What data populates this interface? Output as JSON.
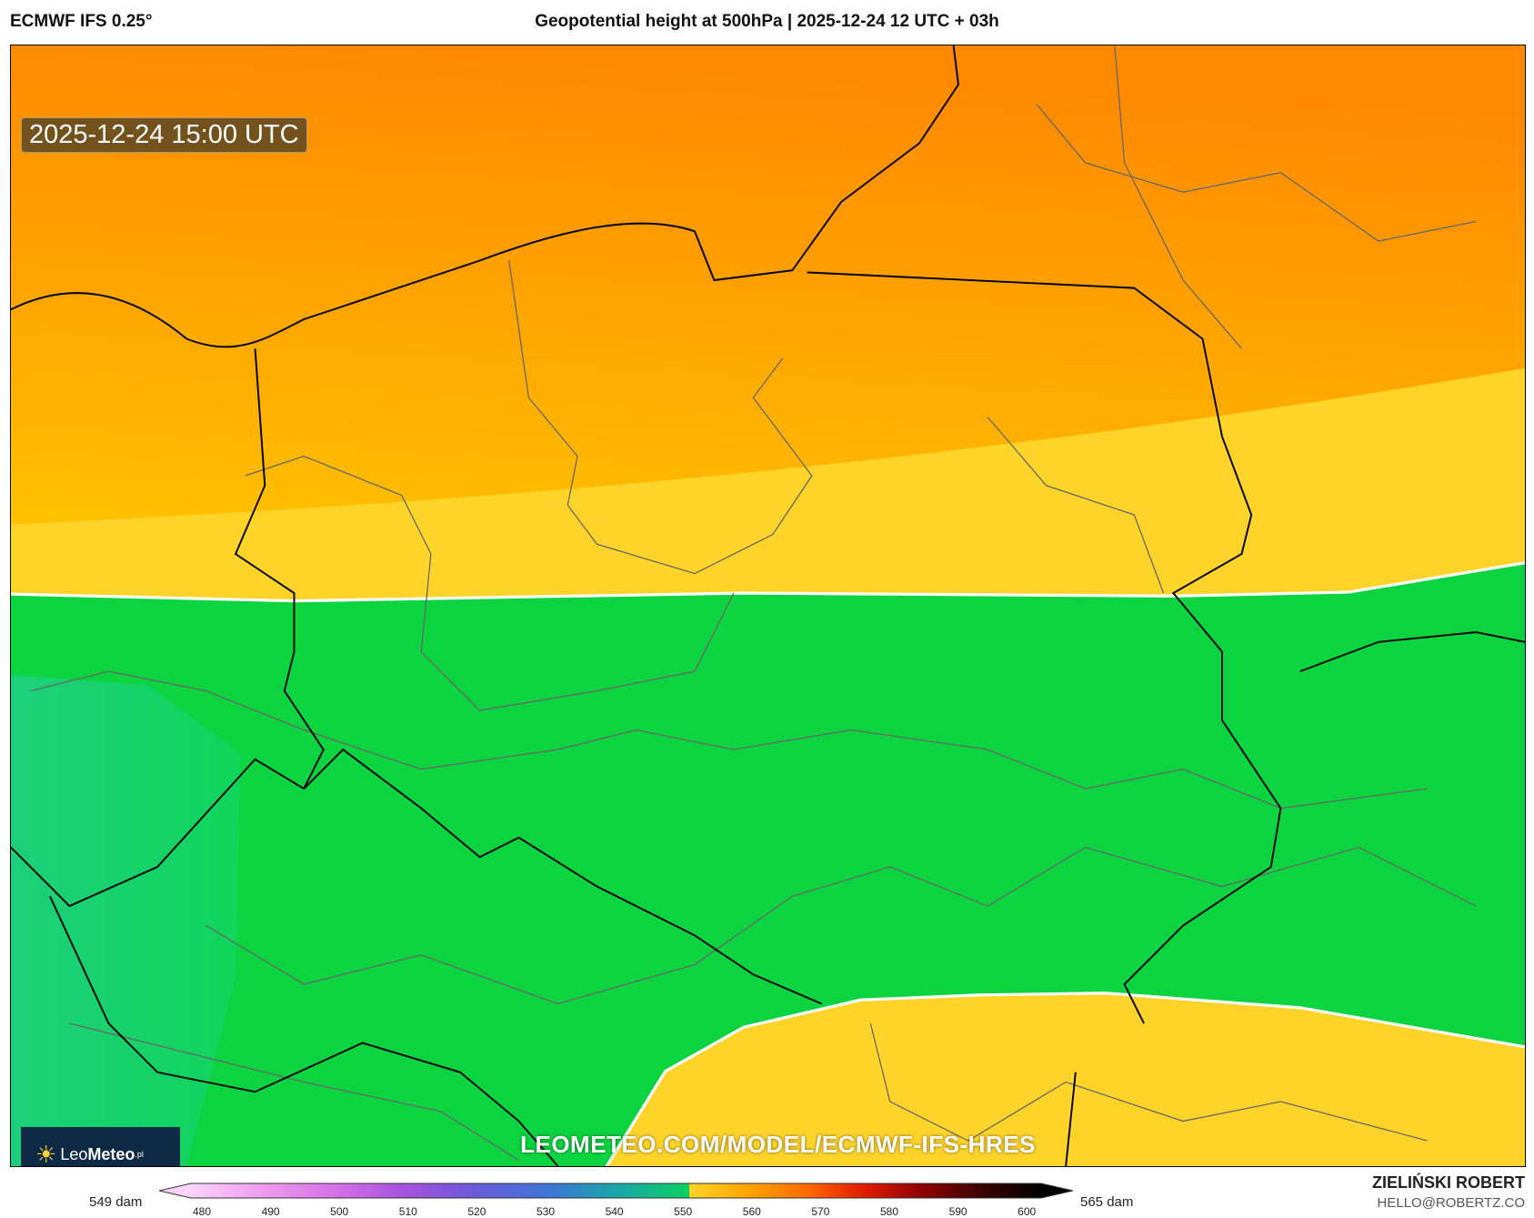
{
  "header": {
    "model": "ECMWF IFS 0.25°",
    "title": "Geopotential height at 500hPa | 2025-12-24 12 UTC + 03h"
  },
  "map": {
    "valid_time": "2025-12-24 15:00 UTC",
    "watermark": "LEOMETEO.COM/MODEL/ECMWF-IFS-HRES",
    "logo": {
      "text_light": "Leo",
      "text_bold": "Meteo",
      "suffix": ".pl"
    },
    "field_colors": {
      "dark_orange": "#ff8a00",
      "orange": "#ffad00",
      "amber": "#ffc000",
      "yellow": "#ffd42a",
      "green": "#0bd440",
      "light_green": "#14d266"
    },
    "contour_color": "#ffffff"
  },
  "colorbar": {
    "min_label": "549 dam",
    "max_label": "565 dam",
    "ticks": [
      "480",
      "490",
      "500",
      "510",
      "520",
      "530",
      "540",
      "550",
      "560",
      "570",
      "580",
      "590",
      "600"
    ],
    "stops": [
      "#fbd3fb",
      "#ee9cee",
      "#d572e8",
      "#a552dd",
      "#6a5ad8",
      "#3f74d6",
      "#1aa6a8",
      "#0bd060",
      "#ffd42a",
      "#ffa500",
      "#ff6a00",
      "#e01a00",
      "#8b0000",
      "#3a0000",
      "#000000"
    ]
  },
  "credits": {
    "author": "ZIELIŃSKI ROBERT",
    "email": "HELLO@ROBERTZ.CO"
  }
}
